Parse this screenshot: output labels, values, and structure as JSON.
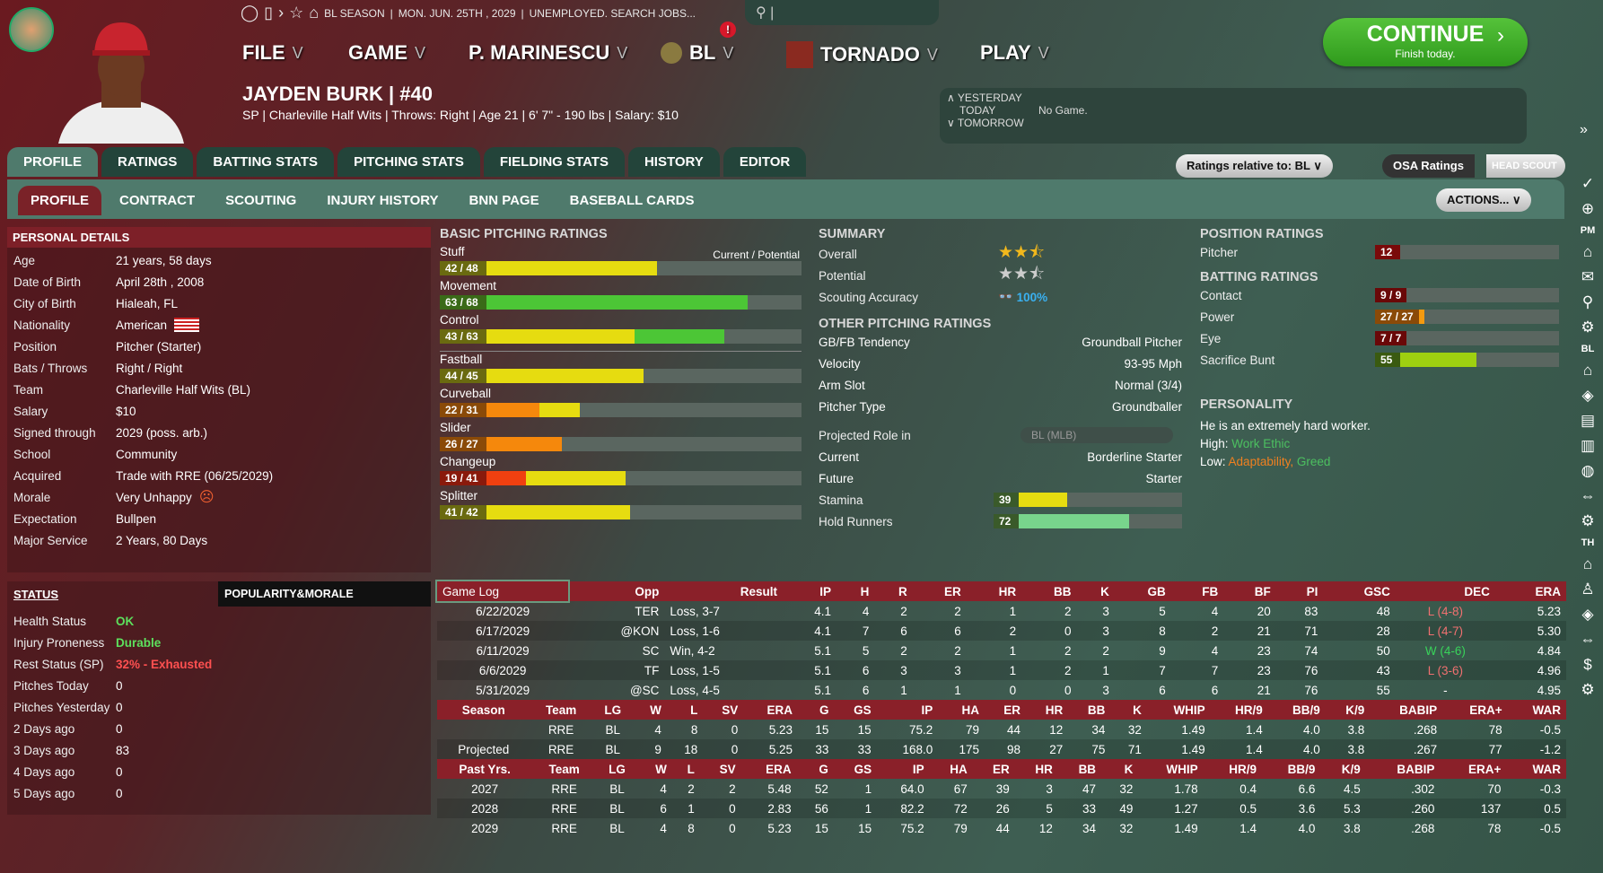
{
  "header": {
    "season": "BL SEASON",
    "date": "MON. JUN. 25TH , 2029",
    "status": "UNEMPLOYED. SEARCH JOBS...",
    "menus": [
      "FILE",
      "GAME",
      "P. MARINESCU",
      "BL",
      "TORNADO",
      "PLAY"
    ],
    "player_name": "JAYDEN BURK  |  #40",
    "player_info": "SP | Charleville Half Wits  |  Throws: Right  |  Age 21  |  6' 7\" - 190 lbs  |  Salary: $10",
    "continue": "CONTINUE",
    "continue_sub": "Finish today.",
    "notification": "!",
    "schedule": {
      "yesterday": "YESTERDAY",
      "today": "TODAY",
      "today_value": "No Game.",
      "tomorrow": "TOMORROW"
    }
  },
  "tabs": [
    "PROFILE",
    "RATINGS",
    "BATTING STATS",
    "PITCHING STATS",
    "FIELDING STATS",
    "HISTORY",
    "EDITOR"
  ],
  "subtabs": [
    "PROFILE",
    "CONTRACT",
    "SCOUTING",
    "INJURY HISTORY",
    "BNN PAGE",
    "BASEBALL CARDS"
  ],
  "controls": {
    "ratings_relative": "Ratings relative to: BL",
    "osa": "OSA Ratings",
    "head_scout": "HEAD SCOUT",
    "actions": "ACTIONS..."
  },
  "personal": {
    "title": "PERSONAL DETAILS",
    "rows": [
      [
        "Age",
        "21 years, 58 days"
      ],
      [
        "Date of Birth",
        "April 28th , 2008"
      ],
      [
        "City of Birth",
        "Hialeah, FL"
      ],
      [
        "Nationality",
        "American"
      ],
      [
        "Position",
        "Pitcher (Starter)"
      ],
      [
        "Bats / Throws",
        "Right / Right"
      ],
      [
        "Team",
        "Charleville Half Wits (BL)"
      ],
      [
        "Salary",
        "$10"
      ],
      [
        "Signed through",
        "2029 (poss. arb.)"
      ],
      [
        "School",
        "Community"
      ],
      [
        "Acquired",
        "Trade with RRE (06/25/2029)"
      ],
      [
        "Morale",
        "Very Unhappy"
      ],
      [
        "Expectation",
        "Bullpen"
      ],
      [
        "Major Service",
        "2 Years, 80 Days"
      ]
    ]
  },
  "status": {
    "title": "STATUS",
    "tab2": "POPULARITY&MORALE",
    "rows": [
      [
        "Health Status",
        "OK",
        "#5de05d"
      ],
      [
        "Injury Proneness",
        "Durable",
        "#5de05d"
      ],
      [
        "Rest Status (SP)",
        "32% - Exhausted",
        "#ff5050"
      ],
      [
        "Pitches Today",
        "0",
        ""
      ],
      [
        "Pitches Yesterday",
        "0",
        ""
      ],
      [
        "2 Days ago",
        "0",
        ""
      ],
      [
        "3 Days ago",
        "83",
        ""
      ],
      [
        "4 Days ago",
        "0",
        ""
      ],
      [
        "5 Days ago",
        "0",
        ""
      ]
    ]
  },
  "pitching": {
    "title": "BASIC PITCHING RATINGS",
    "legend": "Current / Potential",
    "scale_max": 80,
    "ratings": [
      {
        "name": "Stuff",
        "cur": 42,
        "pot": 48,
        "label": "42 / 48"
      },
      {
        "name": "Movement",
        "cur": 63,
        "pot": 68,
        "label": "63 / 68"
      },
      {
        "name": "Control",
        "cur": 43,
        "pot": 63,
        "label": "43 / 63"
      },
      {
        "name": "Fastball",
        "cur": 44,
        "pot": 45,
        "label": "44 / 45"
      },
      {
        "name": "Curveball",
        "cur": 22,
        "pot": 31,
        "label": "22 / 31"
      },
      {
        "name": "Slider",
        "cur": 26,
        "pot": 27,
        "label": "26 / 27"
      },
      {
        "name": "Changeup",
        "cur": 19,
        "pot": 41,
        "label": "19 / 41"
      },
      {
        "name": "Splitter",
        "cur": 41,
        "pot": 42,
        "label": "41 / 42"
      }
    ]
  },
  "summary": {
    "title": "SUMMARY",
    "overall_label": "Overall",
    "overall_stars": 2.5,
    "potential_label": "Potential",
    "potential_stars": 2.5,
    "accuracy_label": "Scouting Accuracy",
    "accuracy": "100%"
  },
  "other": {
    "title": "OTHER PITCHING RATINGS",
    "rows": [
      [
        "GB/FB Tendency",
        "Groundball Pitcher"
      ],
      [
        "Velocity",
        "93-95 Mph"
      ],
      [
        "Arm Slot",
        "Normal (3/4)"
      ],
      [
        "Pitcher Type",
        "Groundballer"
      ]
    ],
    "role_label": "Projected Role in",
    "role_select": "BL (MLB)",
    "role_rows": [
      [
        "Current",
        "Borderline Starter"
      ],
      [
        "Future",
        "Starter"
      ]
    ],
    "bars": [
      {
        "name": "Stamina",
        "value": 39,
        "color": "#e6dc10"
      },
      {
        "name": "Hold Runners",
        "value": 72,
        "color": "#78d48c"
      }
    ]
  },
  "position": {
    "title": "POSITION RATINGS",
    "rows": [
      {
        "name": "Pitcher",
        "label": "12",
        "value": 12,
        "color": "#ee1c1c"
      }
    ]
  },
  "batting": {
    "title": "BATTING RATINGS",
    "rows": [
      {
        "name": "Contact",
        "label": "9 / 9",
        "value": 9,
        "color": "#b01010"
      },
      {
        "name": "Power",
        "label": "27 / 27",
        "value": 27,
        "color": "#f59a10"
      },
      {
        "name": "Eye",
        "label": "7 / 7",
        "value": 7,
        "color": "#b01010"
      },
      {
        "name": "Sacrifice Bunt",
        "label": "55",
        "value": 55,
        "color": "#9ed010"
      }
    ]
  },
  "personality": {
    "title": "PERSONALITY",
    "desc": "He is an extremely hard worker.",
    "high_label": "High:",
    "high": "Work Ethic",
    "low_label": "Low:",
    "low1": "Adaptability,",
    "low2": "Greed"
  },
  "gamelog": {
    "select": "Game Log",
    "headers": [
      "Opp",
      "Result",
      "IP",
      "H",
      "R",
      "ER",
      "HR",
      "BB",
      "K",
      "GB",
      "FB",
      "BF",
      "PI",
      "GSC",
      "DEC",
      "ERA"
    ],
    "rows": [
      [
        "6/22/2029",
        "TER",
        "Loss, 3-7",
        "4.1",
        "4",
        "2",
        "2",
        "1",
        "2",
        "3",
        "5",
        "4",
        "20",
        "83",
        "48",
        "L (4-8)",
        "5.23"
      ],
      [
        "6/17/2029",
        "@KON",
        "Loss, 1-6",
        "4.1",
        "7",
        "6",
        "6",
        "2",
        "0",
        "3",
        "8",
        "2",
        "21",
        "71",
        "28",
        "L (4-7)",
        "5.30"
      ],
      [
        "6/11/2029",
        "SC",
        "Win, 4-2",
        "5.1",
        "5",
        "2",
        "2",
        "1",
        "2",
        "2",
        "9",
        "4",
        "23",
        "74",
        "50",
        "W (4-6)",
        "4.84"
      ],
      [
        "6/6/2029",
        "TF",
        "Loss, 1-5",
        "5.1",
        "6",
        "3",
        "3",
        "1",
        "2",
        "1",
        "7",
        "7",
        "23",
        "76",
        "43",
        "L (3-6)",
        "4.96"
      ],
      [
        "5/31/2029",
        "@SC",
        "Loss, 4-5",
        "5.1",
        "6",
        "1",
        "1",
        "0",
        "0",
        "3",
        "6",
        "6",
        "21",
        "76",
        "55",
        "-",
        "4.95"
      ]
    ]
  },
  "season": {
    "headers": [
      "Season",
      "Team",
      "LG",
      "W",
      "L",
      "SV",
      "ERA",
      "G",
      "GS",
      "IP",
      "HA",
      "ER",
      "HR",
      "BB",
      "K",
      "WHIP",
      "HR/9",
      "BB/9",
      "K/9",
      "BABIP",
      "ERA+",
      "WAR"
    ],
    "rows": [
      [
        "",
        "RRE",
        "BL",
        "4",
        "8",
        "0",
        "5.23",
        "15",
        "15",
        "75.2",
        "79",
        "44",
        "12",
        "34",
        "32",
        "1.49",
        "1.4",
        "4.0",
        "3.8",
        ".268",
        "78",
        "-0.5"
      ],
      [
        "Projected",
        "RRE",
        "BL",
        "9",
        "18",
        "0",
        "5.25",
        "33",
        "33",
        "168.0",
        "175",
        "98",
        "27",
        "75",
        "71",
        "1.49",
        "1.4",
        "4.0",
        "3.8",
        ".267",
        "77",
        "-1.2"
      ]
    ]
  },
  "past": {
    "headers": [
      "Past Yrs.",
      "Team",
      "LG",
      "W",
      "L",
      "SV",
      "ERA",
      "G",
      "GS",
      "IP",
      "HA",
      "ER",
      "HR",
      "BB",
      "K",
      "WHIP",
      "HR/9",
      "BB/9",
      "K/9",
      "BABIP",
      "ERA+",
      "WAR"
    ],
    "rows": [
      [
        "2027",
        "RRE",
        "BL",
        "4",
        "2",
        "2",
        "5.48",
        "52",
        "1",
        "64.0",
        "67",
        "39",
        "3",
        "47",
        "32",
        "1.78",
        "0.4",
        "6.6",
        "4.5",
        ".302",
        "70",
        "-0.3"
      ],
      [
        "2028",
        "RRE",
        "BL",
        "6",
        "1",
        "0",
        "2.83",
        "56",
        "1",
        "82.2",
        "72",
        "26",
        "5",
        "33",
        "49",
        "1.27",
        "0.5",
        "3.6",
        "5.3",
        ".260",
        "137",
        "0.5"
      ],
      [
        "2029",
        "RRE",
        "BL",
        "4",
        "8",
        "0",
        "5.23",
        "15",
        "15",
        "75.2",
        "79",
        "44",
        "12",
        "34",
        "32",
        "1.49",
        "1.4",
        "4.0",
        "3.8",
        ".268",
        "78",
        "-0.5"
      ]
    ]
  },
  "sidebar": {
    "pm": "PM",
    "bl": "BL",
    "th": "TH"
  },
  "colors": {
    "win": "#39d35a",
    "loss": "#f07070",
    "accent_red": "#8a2029",
    "continue_green": "#3fae27"
  }
}
